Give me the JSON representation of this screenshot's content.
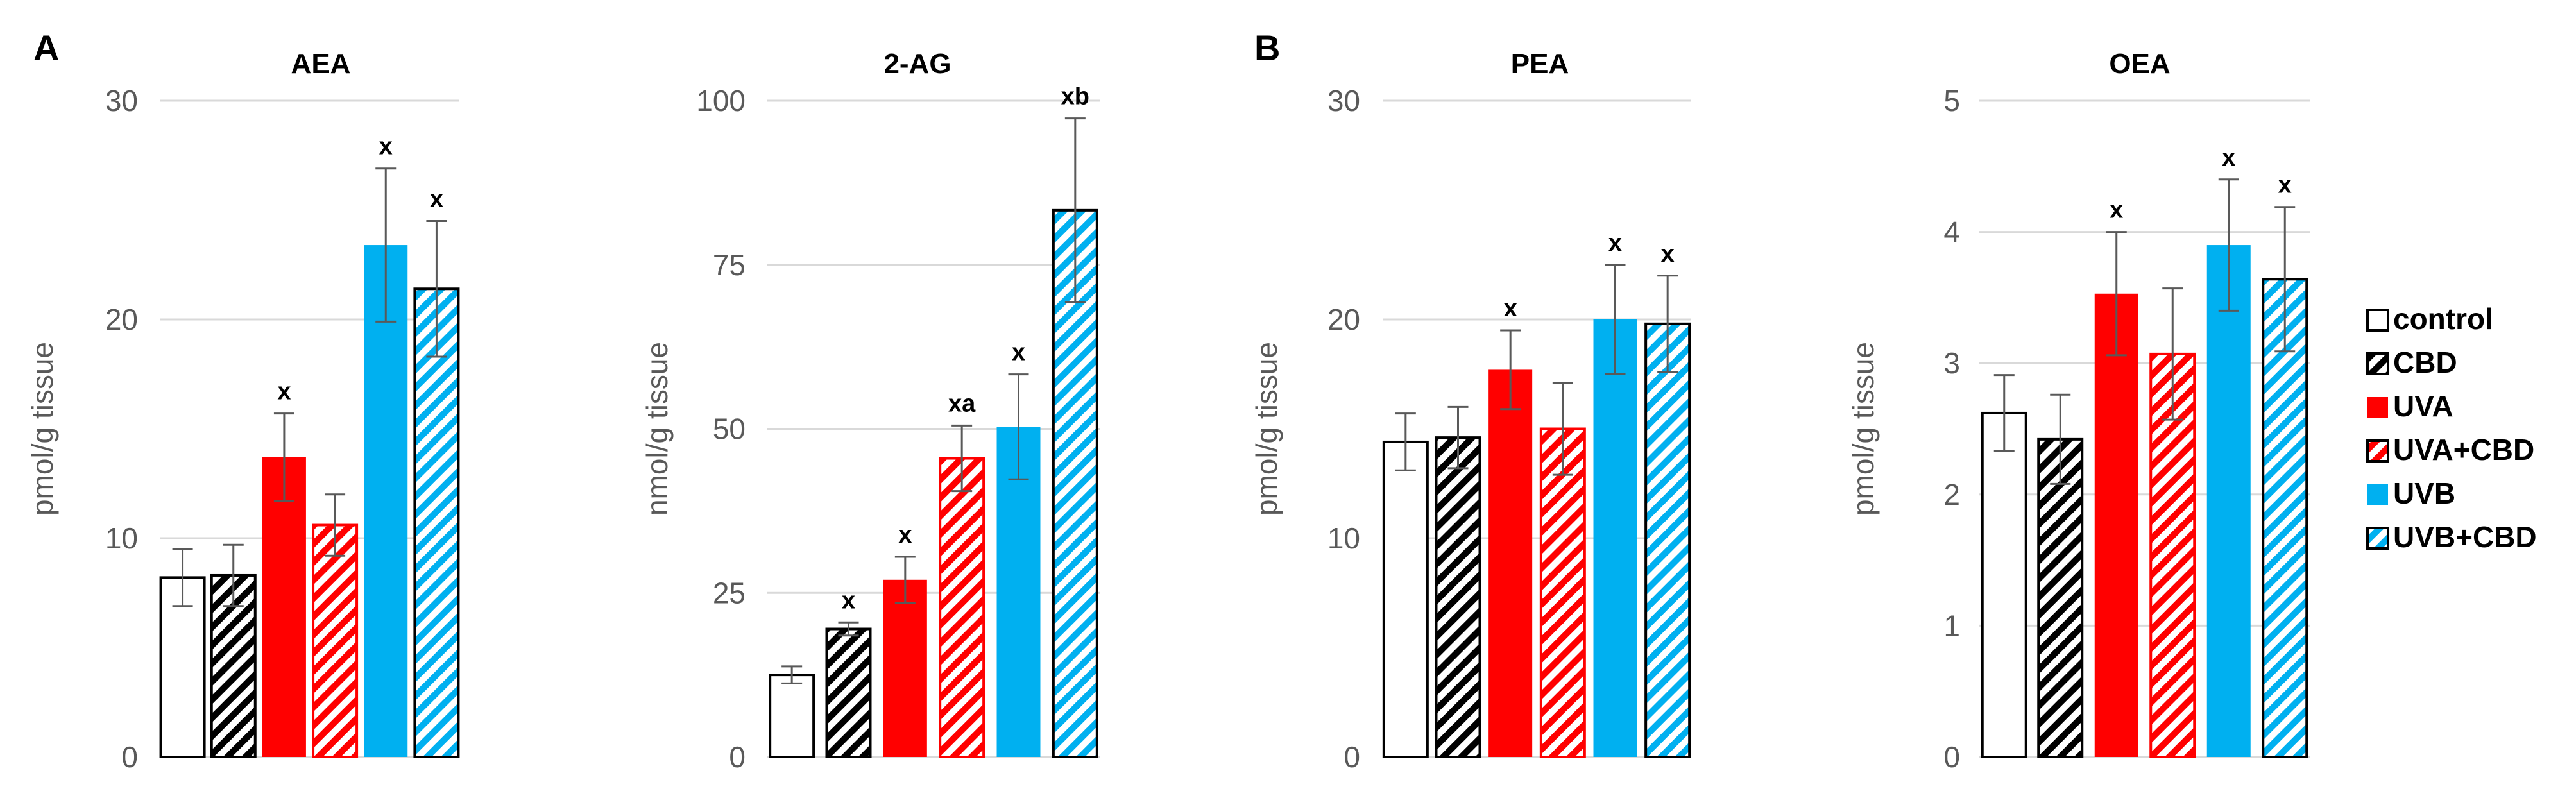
{
  "figure": {
    "panel_labels": [
      "A",
      "B"
    ],
    "colors": {
      "control": "#ffffff",
      "CBD": "#000000",
      "UVA": "#ff0000",
      "UVA+CBD": "#ff0000",
      "UVB": "#00b0f0",
      "UVB+CBD": "#00b0f0"
    },
    "legend": [
      {
        "label": "control",
        "color": "#ffffff",
        "pattern": "none"
      },
      {
        "label": "CBD",
        "color": "#000000",
        "pattern": "hatch"
      },
      {
        "label": "UVA",
        "color": "#ff0000",
        "pattern": "none"
      },
      {
        "label": "UVA+CBD",
        "color": "#ff0000",
        "pattern": "hatch"
      },
      {
        "label": "UVB",
        "color": "#00b0f0",
        "pattern": "none"
      },
      {
        "label": "UVB+CBD",
        "color": "#00b0f0",
        "pattern": "hatch"
      }
    ]
  },
  "chart_data": [
    {
      "type": "bar",
      "title": "AEA",
      "panel": "A",
      "ylabel": "pmol/g tissue",
      "ylim": [
        0,
        30
      ],
      "yticks": [
        0,
        10,
        20,
        30
      ],
      "categories": [
        "control",
        "CBD",
        "UVA",
        "UVA+CBD",
        "UVB",
        "UVB+CBD"
      ],
      "values": [
        8.2,
        8.3,
        13.7,
        10.6,
        23.4,
        21.4
      ],
      "errors": [
        1.3,
        1.4,
        2.0,
        1.4,
        3.5,
        3.1
      ],
      "annotations": [
        "",
        "",
        "x",
        "",
        "x",
        "x"
      ]
    },
    {
      "type": "bar",
      "title": "2-AG",
      "panel": "",
      "ylabel": "nmol/g tissue",
      "ylim": [
        0,
        100
      ],
      "yticks": [
        0,
        25,
        50,
        75,
        100
      ],
      "categories": [
        "control",
        "CBD",
        "UVA",
        "UVA+CBD",
        "UVB",
        "UVB+CBD"
      ],
      "values": [
        12.5,
        19.5,
        27.0,
        45.5,
        50.3,
        83.3
      ],
      "errors": [
        1.3,
        1.0,
        3.5,
        5.0,
        8.0,
        14.0
      ],
      "annotations": [
        "",
        "x",
        "x",
        "xa",
        "x",
        "xb"
      ]
    },
    {
      "type": "bar",
      "title": "PEA",
      "panel": "B",
      "ylabel": "pmol/g tissue",
      "ylim": [
        0,
        30
      ],
      "yticks": [
        0,
        10,
        20,
        30
      ],
      "categories": [
        "control",
        "CBD",
        "UVA",
        "UVA+CBD",
        "UVB",
        "UVB+CBD"
      ],
      "values": [
        14.4,
        14.6,
        17.7,
        15.0,
        20.0,
        19.8
      ],
      "errors": [
        1.3,
        1.4,
        1.8,
        2.1,
        2.5,
        2.2
      ],
      "annotations": [
        "",
        "",
        "x",
        "",
        "x",
        "x"
      ]
    },
    {
      "type": "bar",
      "title": "OEA",
      "panel": "",
      "ylabel": "pmol/g tissue",
      "ylim": [
        0,
        5
      ],
      "yticks": [
        0,
        1,
        2,
        3,
        4,
        5
      ],
      "categories": [
        "control",
        "CBD",
        "UVA",
        "UVA+CBD",
        "UVB",
        "UVB+CBD"
      ],
      "values": [
        2.62,
        2.42,
        3.53,
        3.07,
        3.9,
        3.64
      ],
      "errors": [
        0.29,
        0.34,
        0.47,
        0.5,
        0.5,
        0.55
      ],
      "annotations": [
        "",
        "",
        "x",
        "",
        "x",
        "x"
      ]
    }
  ]
}
